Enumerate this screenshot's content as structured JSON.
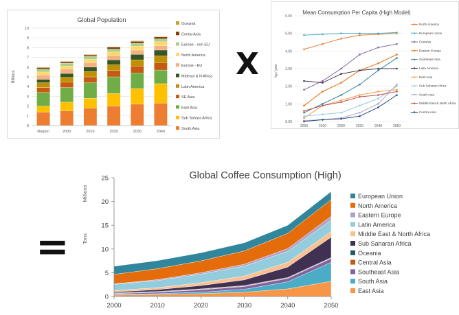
{
  "operators": {
    "times": "X",
    "equals": "="
  },
  "chart_data": [
    {
      "type": "bar",
      "stacked": true,
      "title": "Global Population",
      "ylabel": "Billions",
      "xlabel": "",
      "ylim": [
        0,
        10
      ],
      "yticks": [
        0,
        1,
        2,
        3,
        4,
        5,
        6,
        7,
        8,
        9,
        10
      ],
      "categories": [
        "Region",
        "2000",
        "2010",
        "2020",
        "2030",
        "2040"
      ],
      "legend_position": "right",
      "grid": true,
      "series": [
        {
          "name": "South Asia",
          "color": "#ed7d31",
          "values": [
            1.4,
            1.5,
            1.8,
            2.0,
            2.2,
            2.3
          ]
        },
        {
          "name": "Sub Sahara Africa",
          "color": "#ffc000",
          "values": [
            0.6,
            0.9,
            1.0,
            1.3,
            1.6,
            2.0
          ]
        },
        {
          "name": "East Asia",
          "color": "#70ad47",
          "values": [
            1.4,
            1.5,
            1.6,
            1.7,
            1.6,
            1.4
          ]
        },
        {
          "name": "SE Asia",
          "color": "#c55a11",
          "values": [
            0.5,
            0.55,
            0.6,
            0.65,
            0.7,
            0.75
          ]
        },
        {
          "name": "Latin America",
          "color": "#bf9000",
          "values": [
            0.5,
            0.5,
            0.55,
            0.6,
            0.65,
            0.7
          ]
        },
        {
          "name": "Mideast & N Africa",
          "color": "#375623",
          "values": [
            0.35,
            0.4,
            0.45,
            0.5,
            0.55,
            0.6
          ]
        },
        {
          "name": "Europe - EU",
          "color": "#f4b183",
          "values": [
            0.45,
            0.45,
            0.45,
            0.45,
            0.45,
            0.45
          ]
        },
        {
          "name": "North America",
          "color": "#ffd966",
          "values": [
            0.3,
            0.3,
            0.35,
            0.35,
            0.4,
            0.4
          ]
        },
        {
          "name": "Europe - non EU",
          "color": "#a9d18e",
          "values": [
            0.3,
            0.3,
            0.3,
            0.3,
            0.3,
            0.3
          ]
        },
        {
          "name": "Cental Asia",
          "color": "#843c0c",
          "values": [
            0.15,
            0.15,
            0.15,
            0.2,
            0.2,
            0.2
          ]
        },
        {
          "name": "Oceania",
          "color": "#c9a227",
          "values": [
            0.05,
            0.05,
            0.05,
            0.05,
            0.05,
            0.05
          ]
        }
      ]
    },
    {
      "type": "line",
      "title": "Mean Consumption Per Capita (High Model)",
      "ylabel": "kg / year",
      "xlabel": "",
      "ylim": [
        0,
        6
      ],
      "yticks": [
        "0.00",
        "1.00",
        "2.00",
        "3.00",
        "4.00",
        "5.00",
        "6.00"
      ],
      "x": [
        "2000",
        "2010",
        "2020",
        "2030",
        "2040",
        "2050"
      ],
      "legend_position": "right",
      "grid": true,
      "series": [
        {
          "name": "North America",
          "color": "#ed7d31",
          "values": [
            4.1,
            4.4,
            4.7,
            4.9,
            4.95,
            5.0
          ]
        },
        {
          "name": "European Union",
          "color": "#4bacc6",
          "values": [
            4.9,
            4.95,
            5.0,
            5.0,
            5.0,
            5.05
          ]
        },
        {
          "name": "Oceania",
          "color": "#8064a2",
          "values": [
            1.8,
            2.3,
            3.0,
            3.8,
            4.2,
            4.4
          ]
        },
        {
          "name": "Eastern Europe",
          "color": "#e36c09",
          "values": [
            0.9,
            1.7,
            2.2,
            2.9,
            3.3,
            3.8
          ]
        },
        {
          "name": "Southeast Asia",
          "color": "#31859c",
          "values": [
            0.5,
            1.0,
            1.5,
            2.1,
            2.9,
            3.6
          ]
        },
        {
          "name": "Latin America",
          "color": "#403152",
          "values": [
            2.3,
            2.2,
            2.7,
            2.9,
            3.0,
            3.0
          ]
        },
        {
          "name": "East Asia",
          "color": "#f79646",
          "values": [
            0.2,
            0.9,
            1.2,
            1.5,
            1.7,
            1.8
          ]
        },
        {
          "name": "Sub Saharan Africa",
          "color": "#93cddd",
          "values": [
            0.3,
            0.4,
            0.5,
            0.9,
            1.3,
            2.0
          ]
        },
        {
          "name": "South Asia",
          "color": "#b3a2c7",
          "values": [
            0.05,
            0.1,
            0.2,
            0.5,
            1.0,
            2.1
          ]
        },
        {
          "name": "Middle East & North Africa",
          "color": "#c0504d",
          "values": [
            0.6,
            0.9,
            1.1,
            1.4,
            1.5,
            1.7
          ]
        },
        {
          "name": "Central Asia",
          "color": "#1f497d",
          "values": [
            0.0,
            0.1,
            0.15,
            0.3,
            0.8,
            1.5
          ]
        }
      ]
    },
    {
      "type": "area",
      "stacked": true,
      "title": "Global Coffee Consumption (High)",
      "ylabel": "Tons",
      "unit_label": "Millions",
      "xlabel": "",
      "ylim": [
        0,
        25
      ],
      "yticks": [
        0,
        5,
        10,
        15,
        20,
        25
      ],
      "x": [
        "2000",
        "2010",
        "2020",
        "2030",
        "2040",
        "2050"
      ],
      "legend_position": "right",
      "grid": false,
      "series": [
        {
          "name": "East Asia",
          "color": "#f79646",
          "values": [
            0.3,
            0.4,
            0.6,
            0.9,
            1.6,
            3.2
          ]
        },
        {
          "name": "South Asia",
          "color": "#4bacc6",
          "values": [
            0.1,
            0.2,
            0.3,
            0.6,
            1.5,
            4.0
          ]
        },
        {
          "name": "Southeast Asia",
          "color": "#8064a2",
          "values": [
            0.2,
            0.3,
            0.5,
            0.6,
            0.7,
            0.8
          ]
        },
        {
          "name": "Central Asia",
          "color": "#c55a11",
          "values": [
            0.05,
            0.05,
            0.1,
            0.1,
            0.1,
            0.1
          ]
        },
        {
          "name": "Oceania",
          "color": "#215967",
          "values": [
            0.1,
            0.1,
            0.1,
            0.1,
            0.1,
            0.1
          ]
        },
        {
          "name": "Sub Saharan Africa",
          "color": "#403152",
          "values": [
            0.2,
            0.4,
            0.7,
            1.2,
            2.2,
            4.3
          ]
        },
        {
          "name": "Middle East & North Africa",
          "color": "#fac090",
          "values": [
            0.3,
            0.4,
            0.6,
            0.8,
            1.0,
            1.2
          ]
        },
        {
          "name": "Latin America",
          "color": "#93cddd",
          "values": [
            1.3,
            1.5,
            1.8,
            2.1,
            2.3,
            2.4
          ]
        },
        {
          "name": "Eastern Europe",
          "color": "#b3a2c7",
          "values": [
            0.1,
            0.2,
            0.3,
            0.4,
            0.6,
            0.8
          ]
        },
        {
          "name": "North America",
          "color": "#e46c0a",
          "values": [
            2.0,
            2.3,
            2.5,
            2.8,
            3.2,
            3.5
          ]
        },
        {
          "name": "European Union",
          "color": "#31869b",
          "values": [
            1.7,
            1.7,
            1.7,
            1.7,
            1.7,
            1.7
          ]
        }
      ]
    }
  ]
}
